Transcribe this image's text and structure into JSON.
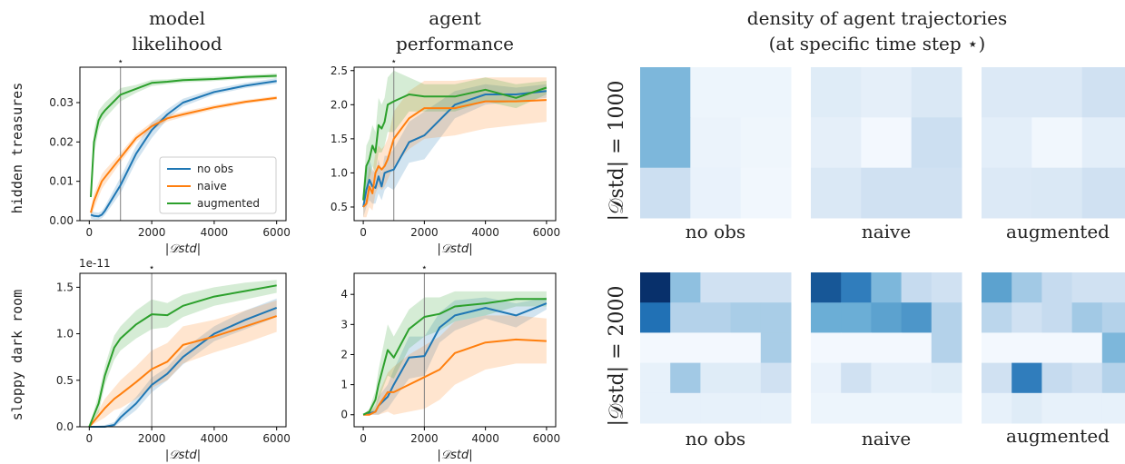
{
  "column_titles": {
    "model": [
      "model",
      "likelihood"
    ],
    "agent": [
      "agent",
      "performance"
    ],
    "density": [
      "density of agent trajectories",
      "(at specific time step ⋆)"
    ]
  },
  "row_labels": [
    "hidden treasures",
    "sloppy dark room"
  ],
  "density_row_labels": [
    "|𝒟std| = 1000",
    "|𝒟std| = 2000"
  ],
  "density_column_labels": [
    "no obs",
    "naive",
    "augmented"
  ],
  "legend": [
    "no obs",
    "naive",
    "augmented"
  ],
  "xlabel": "|𝒟std|",
  "star_marker": "⋆",
  "offset_text": "1e-11",
  "colors": {
    "no obs": "#1f77b4",
    "naive": "#ff7f0e",
    "augmented": "#2ca02c",
    "star_line": "#7f7f7f"
  },
  "chart_data": [
    {
      "id": "model-hidden",
      "type": "line",
      "title": "",
      "xlabel": "|𝒟std|",
      "ylabel": "",
      "xlim": [
        -300,
        6300
      ],
      "ylim": [
        0,
        0.039
      ],
      "xticks": [
        0,
        2000,
        4000,
        6000
      ],
      "yticks": [
        0,
        0.01,
        0.02,
        0.03
      ],
      "yticklabels": [
        "0.00",
        "0.01",
        "0.02",
        "0.03"
      ],
      "star_x": 1000,
      "legend": "lower-right",
      "series": [
        {
          "name": "no obs",
          "x": [
            50,
            150,
            300,
            400,
            500,
            1000,
            1500,
            2000,
            2500,
            3000,
            4000,
            5000,
            6000
          ],
          "y": [
            0.0015,
            0.0012,
            0.0011,
            0.0015,
            0.0025,
            0.009,
            0.017,
            0.023,
            0.027,
            0.03,
            0.0327,
            0.0343,
            0.0355
          ],
          "lo": [
            0.0005,
            0.0003,
            0.0003,
            0.0006,
            0.0014,
            0.007,
            0.015,
            0.021,
            0.0258,
            0.029,
            0.032,
            0.0337,
            0.0348
          ],
          "hi": [
            0.0025,
            0.0022,
            0.002,
            0.0025,
            0.0036,
            0.011,
            0.019,
            0.025,
            0.0283,
            0.031,
            0.0335,
            0.035,
            0.0362
          ]
        },
        {
          "name": "naive",
          "x": [
            50,
            150,
            300,
            400,
            500,
            1000,
            1500,
            2000,
            2500,
            3000,
            4000,
            5000,
            6000
          ],
          "y": [
            0.002,
            0.005,
            0.008,
            0.01,
            0.011,
            0.016,
            0.021,
            0.024,
            0.026,
            0.027,
            0.0288,
            0.0302,
            0.0312
          ],
          "lo": [
            0.001,
            0.003,
            0.006,
            0.008,
            0.0092,
            0.0148,
            0.02,
            0.023,
            0.0252,
            0.0263,
            0.0282,
            0.0297,
            0.0307
          ],
          "hi": [
            0.003,
            0.0068,
            0.0098,
            0.0118,
            0.0128,
            0.0172,
            0.022,
            0.025,
            0.0268,
            0.0277,
            0.0294,
            0.0307,
            0.0317
          ]
        },
        {
          "name": "augmented",
          "x": [
            50,
            150,
            300,
            400,
            500,
            1000,
            1500,
            2000,
            2500,
            3000,
            4000,
            5000,
            6000
          ],
          "y": [
            0.006,
            0.02,
            0.0255,
            0.027,
            0.028,
            0.032,
            0.0335,
            0.035,
            0.0353,
            0.0357,
            0.036,
            0.0365,
            0.0368
          ],
          "lo": [
            0.005,
            0.017,
            0.023,
            0.025,
            0.026,
            0.0303,
            0.0325,
            0.0342,
            0.0347,
            0.0351,
            0.0355,
            0.036,
            0.0362
          ],
          "hi": [
            0.007,
            0.023,
            0.028,
            0.029,
            0.03,
            0.0337,
            0.0345,
            0.0358,
            0.0359,
            0.0363,
            0.0366,
            0.037,
            0.0374
          ]
        }
      ]
    },
    {
      "id": "agent-hidden",
      "type": "line",
      "title": "",
      "xlabel": "|𝒟std|",
      "ylabel": "",
      "xlim": [
        -300,
        6300
      ],
      "ylim": [
        0.3,
        2.55
      ],
      "xticks": [
        0,
        2000,
        4000,
        6000
      ],
      "yticks": [
        0.5,
        1.0,
        1.5,
        2.0,
        2.5
      ],
      "yticklabels": [
        "0.5",
        "1.0",
        "1.5",
        "2.0",
        "2.5"
      ],
      "star_x": 1000,
      "series": [
        {
          "name": "no obs",
          "x": [
            0,
            100,
            200,
            300,
            400,
            500,
            600,
            700,
            800,
            1000,
            1500,
            2000,
            3000,
            4000,
            5000,
            6000
          ],
          "y": [
            0.5,
            0.75,
            0.9,
            0.8,
            0.78,
            0.95,
            0.8,
            1.0,
            1.02,
            1.05,
            1.45,
            1.55,
            2.0,
            2.15,
            2.15,
            2.2
          ],
          "lo": [
            0.35,
            0.5,
            0.6,
            0.55,
            0.55,
            0.7,
            0.6,
            0.75,
            0.8,
            0.75,
            1.15,
            1.2,
            1.8,
            2.0,
            2.05,
            2.1
          ],
          "hi": [
            0.65,
            1.0,
            1.2,
            1.05,
            1.0,
            1.2,
            1.0,
            1.25,
            1.25,
            1.35,
            1.75,
            1.9,
            2.2,
            2.3,
            2.25,
            2.3
          ]
        },
        {
          "name": "naive",
          "x": [
            0,
            100,
            200,
            300,
            400,
            500,
            600,
            700,
            800,
            1000,
            1500,
            2000,
            3000,
            4000,
            5000,
            6000
          ],
          "y": [
            0.5,
            0.55,
            0.8,
            0.7,
            1.0,
            1.1,
            1.05,
            1.1,
            1.2,
            1.5,
            1.8,
            1.95,
            1.95,
            2.05,
            2.05,
            2.07
          ],
          "lo": [
            0.35,
            0.35,
            0.5,
            0.45,
            0.7,
            0.8,
            0.75,
            0.8,
            0.9,
            1.1,
            1.35,
            1.5,
            1.55,
            1.65,
            1.7,
            1.75
          ],
          "hi": [
            0.65,
            0.8,
            1.1,
            1.0,
            1.3,
            1.4,
            1.35,
            1.4,
            1.5,
            1.9,
            2.2,
            2.35,
            2.35,
            2.4,
            2.4,
            2.4
          ]
        },
        {
          "name": "augmented",
          "x": [
            0,
            100,
            200,
            300,
            400,
            500,
            600,
            700,
            800,
            1000,
            1500,
            2000,
            3000,
            4000,
            5000,
            6000
          ],
          "y": [
            0.6,
            1.1,
            1.2,
            1.4,
            1.3,
            1.7,
            1.65,
            1.75,
            2.0,
            2.05,
            2.15,
            2.12,
            2.12,
            2.22,
            2.1,
            2.25
          ],
          "lo": [
            0.45,
            0.8,
            0.9,
            1.1,
            1.0,
            1.3,
            1.3,
            1.4,
            1.6,
            1.6,
            1.9,
            1.9,
            1.9,
            2.05,
            1.95,
            2.15
          ],
          "hi": [
            0.75,
            1.4,
            1.5,
            1.7,
            1.6,
            2.1,
            2.0,
            2.1,
            2.4,
            2.5,
            2.4,
            2.3,
            2.3,
            2.4,
            2.3,
            2.35
          ]
        }
      ]
    },
    {
      "id": "model-sloppy",
      "type": "line",
      "title": "",
      "xlabel": "|𝒟std|",
      "ylabel": "",
      "xlim": [
        -300,
        6300
      ],
      "ylim": [
        0,
        1.65
      ],
      "xticks": [
        0,
        2000,
        4000,
        6000
      ],
      "yticks": [
        0,
        0.5,
        1.0,
        1.5
      ],
      "yticklabels": [
        "0.0",
        "0.5",
        "1.0",
        "1.5"
      ],
      "star_x": 2000,
      "series": [
        {
          "name": "no obs",
          "x": [
            0,
            500,
            800,
            1000,
            1500,
            2000,
            2500,
            3000,
            4000,
            5000,
            6000
          ],
          "y": [
            0.0,
            0.0,
            0.02,
            0.1,
            0.25,
            0.45,
            0.57,
            0.75,
            1.0,
            1.15,
            1.28
          ],
          "lo": [
            0.0,
            0.0,
            0.0,
            0.05,
            0.18,
            0.37,
            0.5,
            0.67,
            0.92,
            1.05,
            1.18
          ],
          "hi": [
            0.0,
            0.02,
            0.05,
            0.15,
            0.32,
            0.53,
            0.64,
            0.83,
            1.08,
            1.25,
            1.38
          ]
        },
        {
          "name": "naive",
          "x": [
            0,
            500,
            800,
            1000,
            1500,
            2000,
            2500,
            3000,
            4000,
            5000,
            6000
          ],
          "y": [
            0.0,
            0.2,
            0.3,
            0.35,
            0.48,
            0.62,
            0.7,
            0.88,
            0.97,
            1.08,
            1.19
          ],
          "lo": [
            0.0,
            0.1,
            0.18,
            0.2,
            0.3,
            0.42,
            0.5,
            0.68,
            0.8,
            0.9,
            1.02
          ],
          "hi": [
            0.0,
            0.3,
            0.42,
            0.5,
            0.65,
            0.82,
            0.9,
            1.08,
            1.15,
            1.25,
            1.36
          ]
        },
        {
          "name": "augmented",
          "x": [
            0,
            300,
            500,
            800,
            1000,
            1500,
            2000,
            2500,
            3000,
            4000,
            5000,
            6000
          ],
          "y": [
            0.0,
            0.25,
            0.55,
            0.85,
            0.95,
            1.1,
            1.21,
            1.2,
            1.3,
            1.4,
            1.46,
            1.52
          ],
          "lo": [
            0.0,
            0.15,
            0.45,
            0.72,
            0.82,
            0.95,
            1.05,
            1.07,
            1.18,
            1.3,
            1.37,
            1.44
          ],
          "hi": [
            0.0,
            0.35,
            0.65,
            0.98,
            1.08,
            1.25,
            1.37,
            1.33,
            1.42,
            1.5,
            1.55,
            1.58
          ]
        }
      ]
    },
    {
      "id": "agent-sloppy",
      "type": "line",
      "title": "",
      "xlabel": "|𝒟std|",
      "ylabel": "",
      "xlim": [
        -300,
        6300
      ],
      "ylim": [
        -0.4,
        4.7
      ],
      "xticks": [
        0,
        2000,
        4000,
        6000
      ],
      "yticks": [
        0,
        1,
        2,
        3,
        4
      ],
      "yticklabels": [
        "0",
        "1",
        "2",
        "3",
        "4"
      ],
      "star_x": 2000,
      "series": [
        {
          "name": "no obs",
          "x": [
            0,
            200,
            400,
            500,
            800,
            1000,
            1500,
            2000,
            2500,
            3000,
            4000,
            5000,
            6000
          ],
          "y": [
            0.0,
            0.05,
            0.1,
            0.3,
            0.6,
            1.0,
            1.9,
            1.95,
            2.9,
            3.3,
            3.55,
            3.3,
            3.7
          ],
          "lo": [
            0.0,
            0.0,
            0.0,
            0.0,
            0.2,
            0.5,
            1.2,
            1.3,
            2.4,
            2.8,
            3.2,
            2.9,
            3.5
          ],
          "hi": [
            0.0,
            0.1,
            0.2,
            0.6,
            1.0,
            1.5,
            2.6,
            2.6,
            3.4,
            3.8,
            3.9,
            3.7,
            3.9
          ]
        },
        {
          "name": "naive",
          "x": [
            0,
            200,
            400,
            500,
            800,
            1000,
            1500,
            2000,
            2500,
            3000,
            4000,
            5000,
            6000
          ],
          "y": [
            0.0,
            0.0,
            0.1,
            0.3,
            0.75,
            0.75,
            1.0,
            1.25,
            1.5,
            2.05,
            2.4,
            2.5,
            2.45
          ],
          "lo": [
            0.0,
            0.0,
            0.0,
            0.0,
            0.1,
            0.0,
            0.1,
            0.2,
            0.5,
            1.0,
            1.5,
            1.7,
            1.7
          ],
          "hi": [
            0.0,
            0.1,
            0.3,
            0.7,
            1.4,
            1.6,
            2.0,
            2.3,
            2.6,
            3.1,
            3.3,
            3.3,
            3.2
          ]
        },
        {
          "name": "augmented",
          "x": [
            0,
            200,
            400,
            500,
            800,
            1000,
            1500,
            2000,
            2500,
            3000,
            4000,
            5000,
            6000
          ],
          "y": [
            0.0,
            0.1,
            0.5,
            1.0,
            2.15,
            1.9,
            2.85,
            3.25,
            3.35,
            3.6,
            3.7,
            3.85,
            3.85
          ],
          "lo": [
            0.0,
            0.0,
            0.2,
            0.5,
            1.3,
            1.2,
            2.2,
            2.6,
            2.8,
            3.1,
            3.3,
            3.6,
            3.6
          ],
          "hi": [
            0.0,
            0.2,
            0.8,
            1.5,
            3.0,
            2.6,
            3.5,
            3.9,
            3.9,
            4.1,
            4.1,
            4.1,
            4.1
          ]
        }
      ]
    },
    {
      "id": "density-1000",
      "type": "heatmap",
      "title": "",
      "panels": [
        {
          "name": "no obs",
          "rows": 3,
          "cols": 3,
          "values": [
            [
              0.45,
              0.05,
              0.05
            ],
            [
              0.45,
              0.06,
              0.04
            ],
            [
              0.22,
              0.07,
              0.03
            ]
          ]
        },
        {
          "name": "naive",
          "rows": 3,
          "cols": 3,
          "values": [
            [
              0.12,
              0.09,
              0.15
            ],
            [
              0.09,
              0.02,
              0.22
            ],
            [
              0.15,
              0.2,
              0.2
            ]
          ]
        },
        {
          "name": "augmented",
          "rows": 3,
          "cols": 3,
          "values": [
            [
              0.14,
              0.14,
              0.2
            ],
            [
              0.1,
              0.03,
              0.1
            ],
            [
              0.14,
              0.15,
              0.2
            ]
          ]
        }
      ]
    },
    {
      "id": "density-2000",
      "type": "heatmap",
      "title": "",
      "panels": [
        {
          "name": "no obs",
          "rows": 5,
          "cols": 5,
          "values": [
            [
              1.0,
              0.4,
              0.2,
              0.2,
              0.2
            ],
            [
              0.75,
              0.3,
              0.3,
              0.33,
              0.33
            ],
            [
              0.02,
              0.02,
              0.02,
              0.02,
              0.33
            ],
            [
              0.08,
              0.35,
              0.12,
              0.12,
              0.2
            ],
            [
              0.08,
              0.08,
              0.08,
              0.08,
              0.08
            ]
          ]
        },
        {
          "name": "naive",
          "rows": 5,
          "cols": 5,
          "values": [
            [
              0.85,
              0.7,
              0.45,
              0.25,
              0.2
            ],
            [
              0.5,
              0.5,
              0.55,
              0.6,
              0.3
            ],
            [
              0.02,
              0.02,
              0.02,
              0.02,
              0.3
            ],
            [
              0.07,
              0.2,
              0.1,
              0.1,
              0.12
            ],
            [
              0.05,
              0.05,
              0.05,
              0.05,
              0.05
            ]
          ]
        },
        {
          "name": "augmented",
          "rows": 5,
          "cols": 5,
          "values": [
            [
              0.55,
              0.35,
              0.25,
              0.2,
              0.2
            ],
            [
              0.28,
              0.2,
              0.25,
              0.35,
              0.3
            ],
            [
              0.02,
              0.02,
              0.02,
              0.02,
              0.45
            ],
            [
              0.2,
              0.7,
              0.25,
              0.2,
              0.3
            ],
            [
              0.08,
              0.12,
              0.08,
              0.08,
              0.08
            ]
          ]
        }
      ]
    }
  ]
}
